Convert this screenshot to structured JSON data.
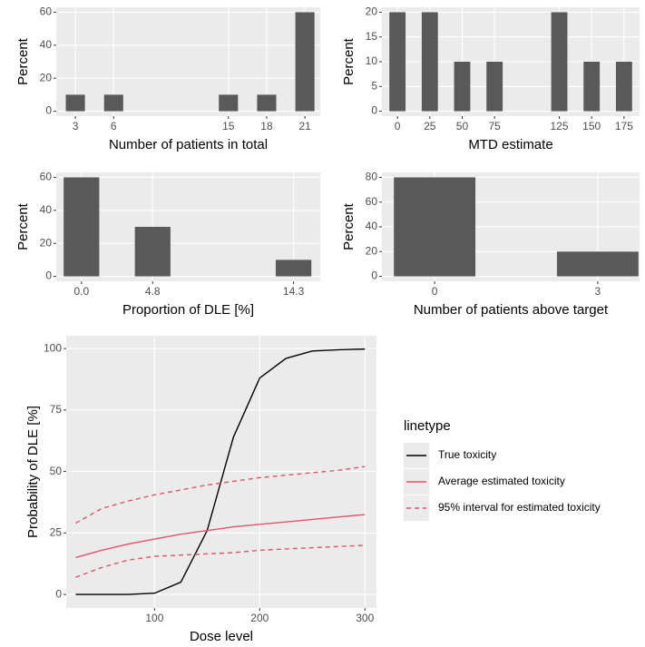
{
  "chart_data": [
    {
      "type": "bar",
      "xlabel": "Number of patients in total",
      "ylabel": "Percent",
      "x": [
        3,
        6,
        15,
        18,
        21
      ],
      "values": [
        10,
        10,
        10,
        10,
        60
      ],
      "color": "#595959",
      "xlim": [
        1.5,
        22.2
      ],
      "xticks": [
        3,
        6,
        15,
        18,
        21
      ],
      "ylim": [
        -3,
        63
      ],
      "yticks": [
        0,
        20,
        40,
        60
      ],
      "grid": true
    },
    {
      "type": "bar",
      "xlabel": "MTD estimate",
      "ylabel": "Percent",
      "x": [
        0,
        25,
        50,
        75,
        125,
        150,
        175
      ],
      "values": [
        20,
        20,
        10,
        10,
        20,
        10,
        10
      ],
      "color": "#595959",
      "xlim": [
        -12,
        187
      ],
      "xticks": [
        0,
        25,
        50,
        75,
        125,
        150,
        175
      ],
      "ylim": [
        -1,
        21
      ],
      "yticks": [
        0,
        5,
        10,
        15,
        20
      ],
      "grid": true
    },
    {
      "type": "bar",
      "xlabel": "Proportion of DLE [%]",
      "ylabel": "Percent",
      "x": [
        0,
        4.8,
        14.3
      ],
      "values": [
        60,
        30,
        10
      ],
      "color": "#595959",
      "xlim": [
        -1.7,
        16.1
      ],
      "xticks": [
        {
          "value": 0,
          "label": "0.0"
        },
        4.8,
        14.3
      ],
      "ylim": [
        -3,
        63
      ],
      "yticks": [
        0,
        20,
        40,
        60
      ],
      "grid": true
    },
    {
      "type": "bar",
      "xlabel": "Number of patients above target",
      "ylabel": "Percent",
      "x": [
        0,
        3
      ],
      "values": [
        80,
        20
      ],
      "color": "#595959",
      "xlim": [
        -0.97,
        3.77
      ],
      "xticks": [
        0,
        3
      ],
      "ylim": [
        -4,
        84
      ],
      "yticks": [
        0,
        20,
        40,
        60,
        80
      ],
      "grid": true
    },
    {
      "type": "line",
      "xlabel": "Dose level",
      "ylabel": "Probability of DLE [%]",
      "legend_title": "linetype",
      "legend": "right",
      "x": [
        25,
        50,
        75,
        100,
        125,
        150,
        175,
        200,
        225,
        250,
        275,
        300
      ],
      "series": [
        {
          "name": "True toxicity",
          "color": "#000000",
          "dashed": false,
          "values": [
            0,
            0,
            0,
            0.5,
            5,
            26,
            64,
            88,
            96,
            99,
            99.5,
            99.8
          ]
        },
        {
          "name": "Average estimated toxicity",
          "color": "#df536b",
          "dashed": false,
          "values": [
            15,
            18,
            20.5,
            22.5,
            24.5,
            26,
            27.5,
            28.5,
            29.5,
            30.5,
            31.5,
            32.5
          ]
        },
        {
          "name": "95% interval for estimated toxicity",
          "color": "#df536b",
          "dashed": true,
          "values": [
            29,
            35,
            38,
            40.5,
            42.5,
            44.5,
            46,
            47.5,
            48.5,
            49.5,
            50.5,
            52
          ]
        },
        {
          "name": "95% interval for estimated toxicity",
          "color": "#df536b",
          "dashed": true,
          "values": [
            7,
            11,
            14,
            15.5,
            16,
            16.5,
            17,
            18,
            18.5,
            19,
            19.5,
            20
          ]
        }
      ],
      "xlim": [
        16,
        311
      ],
      "xticks": [
        100,
        200,
        300
      ],
      "ylim": [
        -5.5,
        105.2
      ],
      "yticks": [
        0,
        25,
        50,
        75,
        100
      ],
      "grid": true
    }
  ]
}
